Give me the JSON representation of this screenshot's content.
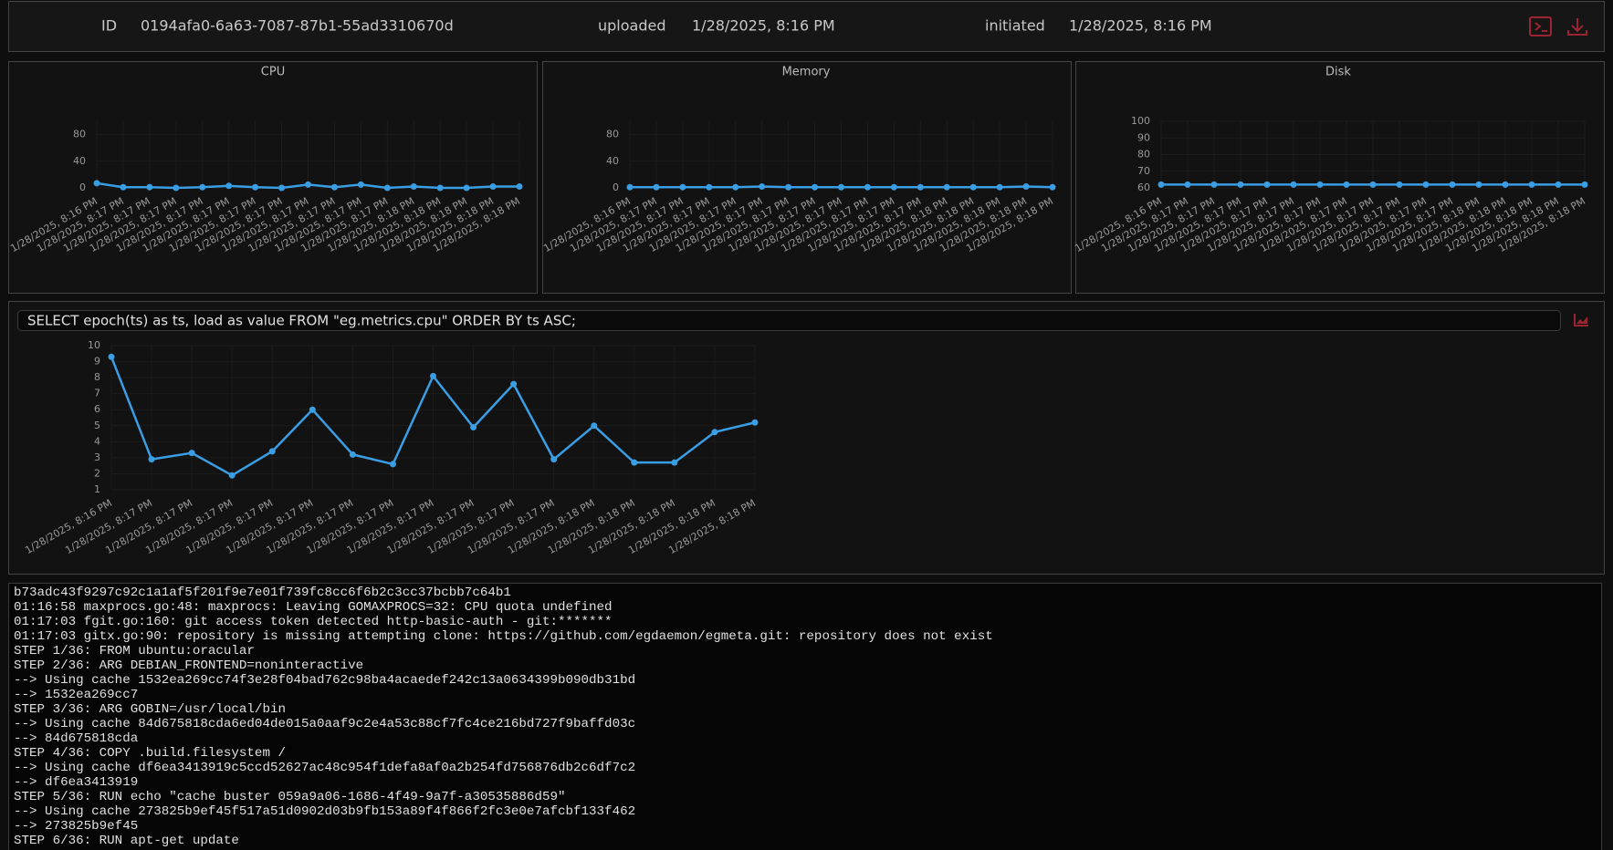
{
  "header": {
    "id_label": "ID",
    "id": "0194afa0-6a63-7087-87b1-55ad3310670d",
    "uploaded_label": "uploaded",
    "uploaded": "1/28/2025, 8:16 PM",
    "initiated_label": "initiated",
    "initiated": "1/28/2025, 8:16 PM"
  },
  "query": "SELECT epoch(ts) as ts, load as value FROM \"eg.metrics.cpu\" ORDER BY ts ASC;",
  "chart_data": [
    {
      "type": "line",
      "title": "CPU",
      "color": "#3a9ee4",
      "grid": true,
      "categories": [
        "1/28/2025, 8:16 PM",
        "1/28/2025, 8:17 PM",
        "1/28/2025, 8:17 PM",
        "1/28/2025, 8:17 PM",
        "1/28/2025, 8:17 PM",
        "1/28/2025, 8:17 PM",
        "1/28/2025, 8:17 PM",
        "1/28/2025, 8:17 PM",
        "1/28/2025, 8:17 PM",
        "1/28/2025, 8:17 PM",
        "1/28/2025, 8:17 PM",
        "1/28/2025, 8:17 PM",
        "1/28/2025, 8:18 PM",
        "1/28/2025, 8:18 PM",
        "1/28/2025, 8:18 PM",
        "1/28/2025, 8:18 PM",
        "1/28/2025, 8:18 PM"
      ],
      "values": [
        7,
        1,
        1,
        0,
        1,
        3,
        1,
        0,
        5,
        1,
        5,
        0,
        2,
        0,
        0,
        2,
        2
      ],
      "ylim": [
        0,
        100
      ],
      "yticks": [
        0,
        40,
        80
      ]
    },
    {
      "type": "line",
      "title": "Memory",
      "color": "#3a9ee4",
      "grid": true,
      "categories": [
        "1/28/2025, 8:16 PM",
        "1/28/2025, 8:17 PM",
        "1/28/2025, 8:17 PM",
        "1/28/2025, 8:17 PM",
        "1/28/2025, 8:17 PM",
        "1/28/2025, 8:17 PM",
        "1/28/2025, 8:17 PM",
        "1/28/2025, 8:17 PM",
        "1/28/2025, 8:17 PM",
        "1/28/2025, 8:17 PM",
        "1/28/2025, 8:17 PM",
        "1/28/2025, 8:17 PM",
        "1/28/2025, 8:18 PM",
        "1/28/2025, 8:18 PM",
        "1/28/2025, 8:18 PM",
        "1/28/2025, 8:18 PM",
        "1/28/2025, 8:18 PM"
      ],
      "values": [
        1,
        1,
        1,
        1,
        1,
        2,
        1,
        1,
        1,
        1,
        1,
        1,
        1,
        1,
        1,
        2,
        1
      ],
      "ylim": [
        0,
        100
      ],
      "yticks": [
        0,
        40,
        80
      ]
    },
    {
      "type": "line",
      "title": "Disk",
      "color": "#3a9ee4",
      "grid": true,
      "categories": [
        "1/28/2025, 8:16 PM",
        "1/28/2025, 8:17 PM",
        "1/28/2025, 8:17 PM",
        "1/28/2025, 8:17 PM",
        "1/28/2025, 8:17 PM",
        "1/28/2025, 8:17 PM",
        "1/28/2025, 8:17 PM",
        "1/28/2025, 8:17 PM",
        "1/28/2025, 8:17 PM",
        "1/28/2025, 8:17 PM",
        "1/28/2025, 8:17 PM",
        "1/28/2025, 8:17 PM",
        "1/28/2025, 8:18 PM",
        "1/28/2025, 8:18 PM",
        "1/28/2025, 8:18 PM",
        "1/28/2025, 8:18 PM",
        "1/28/2025, 8:18 PM"
      ],
      "values": [
        62,
        62,
        62,
        62,
        62,
        62,
        62,
        62,
        62,
        62,
        62,
        62,
        62,
        62,
        62,
        62,
        62
      ],
      "ylim": [
        60,
        100
      ],
      "yticks": [
        60,
        70,
        80,
        90,
        100
      ]
    },
    {
      "type": "line",
      "color": "#3a9ee4",
      "grid": true,
      "categories": [
        "1/28/2025, 8:16 PM",
        "1/28/2025, 8:17 PM",
        "1/28/2025, 8:17 PM",
        "1/28/2025, 8:17 PM",
        "1/28/2025, 8:17 PM",
        "1/28/2025, 8:17 PM",
        "1/28/2025, 8:17 PM",
        "1/28/2025, 8:17 PM",
        "1/28/2025, 8:17 PM",
        "1/28/2025, 8:17 PM",
        "1/28/2025, 8:17 PM",
        "1/28/2025, 8:17 PM",
        "1/28/2025, 8:18 PM",
        "1/28/2025, 8:18 PM",
        "1/28/2025, 8:18 PM",
        "1/28/2025, 8:18 PM",
        "1/28/2025, 8:18 PM"
      ],
      "values": [
        9.3,
        2.9,
        3.3,
        1.9,
        3.4,
        6.0,
        3.2,
        2.6,
        8.1,
        4.9,
        7.6,
        2.9,
        5.0,
        2.7,
        2.7,
        4.6,
        5.2
      ],
      "ylim": [
        1,
        10
      ],
      "yticks": [
        1,
        2,
        3,
        4,
        5,
        6,
        7,
        8,
        9,
        10
      ]
    }
  ],
  "logs": [
    "b73adc43f9297c92c1a1af5f201f9e7e01f739fc8cc6f6b2c3cc37bcbb7c64b1",
    "01:16:58 maxprocs.go:48: maxprocs: Leaving GOMAXPROCS=32: CPU quota undefined",
    "01:17:03 fgit.go:160: git access token detected http-basic-auth - git:*******",
    "01:17:03 gitx.go:90: repository is missing attempting clone: https://github.com/egdaemon/egmeta.git: repository does not exist",
    "STEP 1/36: FROM ubuntu:oracular",
    "STEP 2/36: ARG DEBIAN_FRONTEND=noninteractive",
    "--> Using cache 1532ea269cc74f3e28f04bad762c98ba4acaedef242c13a0634399b090db31bd",
    "--> 1532ea269cc7",
    "STEP 3/36: ARG GOBIN=/usr/local/bin",
    "--> Using cache 84d675818cda6ed04de015a0aaf9c2e4a53c88cf7fc4ce216bd727f9baffd03c",
    "--> 84d675818cda",
    "STEP 4/36: COPY .build.filesystem /",
    "--> Using cache df6ea3413919c5ccd52627ac48c954f1defa8af0a2b254fd756876db2c6df7c2",
    "--> df6ea3413919",
    "STEP 5/36: RUN echo \"cache buster 059a9a06-1686-4f49-9a7f-a30535886d59\"",
    "--> Using cache 273825b9ef45f517a51d0902d03b9fb153a89f4f866f2fc3e0e7afcbf133f462",
    "--> 273825b9ef45",
    "STEP 6/36: RUN apt-get update"
  ]
}
